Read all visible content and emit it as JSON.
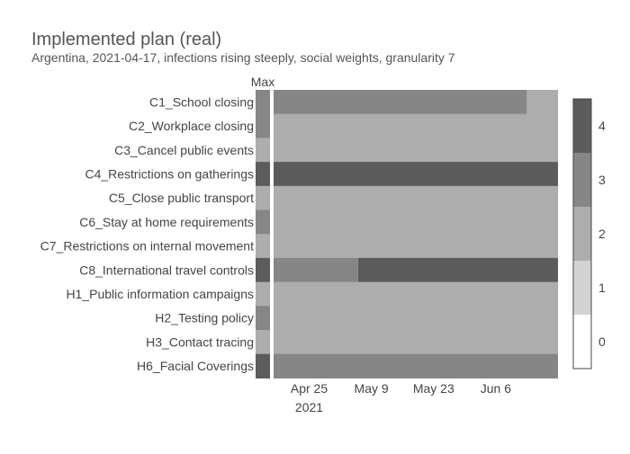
{
  "chart_data": {
    "type": "heatmap",
    "title": "Implemented plan (real)",
    "subtitle": "Argentina, 2021-04-17, infections rising steeply, social weights, granularity 7",
    "max_label": "Max",
    "rows": [
      "C1_School closing",
      "C2_Workplace closing",
      "C3_Cancel public events",
      "C4_Restrictions on gatherings",
      "C5_Close public transport",
      "C6_Stay at home requirements",
      "C7_Restrictions on internal movement",
      "C8_International travel controls",
      "H1_Public information campaigns",
      "H2_Testing policy",
      "H3_Contact tracing",
      "H6_Facial Coverings"
    ],
    "max_values": [
      3,
      3,
      2,
      4,
      2,
      3,
      2,
      4,
      2,
      3,
      2,
      4
    ],
    "x_start": "2021-04-17",
    "x_end": "2021-06-20",
    "segments": [
      [
        {
          "start": "2021-04-17",
          "end": "2021-06-13",
          "value": 3
        },
        {
          "start": "2021-06-13",
          "end": "2021-06-20",
          "value": 2
        }
      ],
      [
        {
          "start": "2021-04-17",
          "end": "2021-06-20",
          "value": 2
        }
      ],
      [
        {
          "start": "2021-04-17",
          "end": "2021-06-20",
          "value": 2
        }
      ],
      [
        {
          "start": "2021-04-17",
          "end": "2021-06-20",
          "value": 4
        }
      ],
      [
        {
          "start": "2021-04-17",
          "end": "2021-06-20",
          "value": 2
        }
      ],
      [
        {
          "start": "2021-04-17",
          "end": "2021-06-20",
          "value": 2
        }
      ],
      [
        {
          "start": "2021-04-17",
          "end": "2021-06-20",
          "value": 2
        }
      ],
      [
        {
          "start": "2021-04-17",
          "end": "2021-05-06",
          "value": 3
        },
        {
          "start": "2021-05-06",
          "end": "2021-06-20",
          "value": 4
        }
      ],
      [
        {
          "start": "2021-04-17",
          "end": "2021-06-20",
          "value": 2
        }
      ],
      [
        {
          "start": "2021-04-17",
          "end": "2021-06-20",
          "value": 2
        }
      ],
      [
        {
          "start": "2021-04-17",
          "end": "2021-06-20",
          "value": 2
        }
      ],
      [
        {
          "start": "2021-04-17",
          "end": "2021-06-20",
          "value": 3
        }
      ]
    ],
    "x_ticks": [
      {
        "date": "2021-04-25",
        "label": "Apr 25",
        "sublabel": "2021"
      },
      {
        "date": "2021-05-09",
        "label": "May 9",
        "sublabel": ""
      },
      {
        "date": "2021-05-23",
        "label": "May 23",
        "sublabel": ""
      },
      {
        "date": "2021-06-06",
        "label": "Jun 6",
        "sublabel": ""
      }
    ],
    "colorbar": {
      "ticks": [
        "0",
        "1",
        "2",
        "3",
        "4"
      ],
      "colors": [
        "#ffffff",
        "#d3d3d3",
        "#adadad",
        "#868686",
        "#5c5c5c"
      ]
    }
  }
}
